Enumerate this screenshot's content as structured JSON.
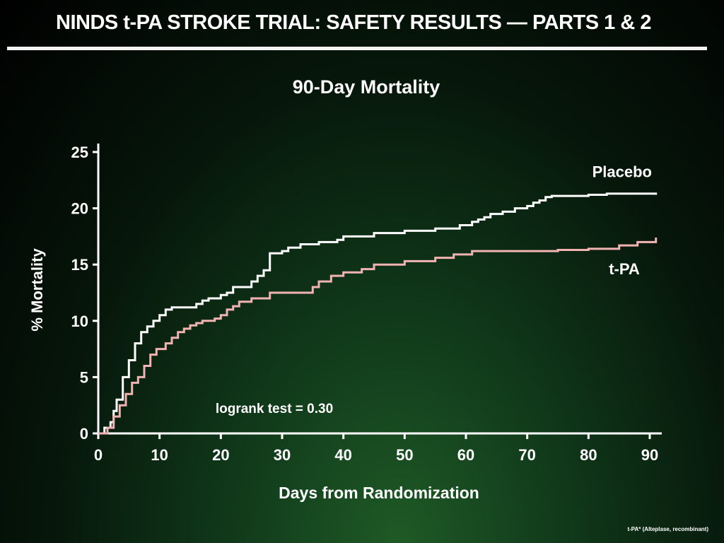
{
  "slide": {
    "title": "NINDS t-PA STROKE TRIAL: SAFETY RESULTS — PARTS 1 & 2",
    "footnote": "t-PA* (Alteplase, recombinant)"
  },
  "chart_data": {
    "type": "line",
    "title": "90-Day Mortality",
    "xlabel": "Days from Randomization",
    "ylabel": "% Mortality",
    "xlim": [
      0,
      90
    ],
    "ylim": [
      0,
      25
    ],
    "xticks": [
      0,
      10,
      20,
      30,
      40,
      50,
      60,
      70,
      80,
      90
    ],
    "yticks": [
      0,
      5,
      10,
      15,
      20,
      25
    ],
    "grid": false,
    "annotation": "logrank test = 0.30",
    "series": [
      {
        "name": "Placebo",
        "color": "#ffffff",
        "step": true,
        "x": [
          0,
          1,
          2,
          2.5,
          3,
          4,
          5,
          6,
          7,
          8,
          9,
          10,
          11,
          12,
          16,
          17,
          18,
          20,
          21,
          22,
          25,
          26,
          27,
          28,
          30,
          31,
          33,
          36,
          39,
          40,
          45,
          50,
          55,
          59,
          61,
          62,
          63,
          64,
          66,
          68,
          70,
          71,
          72,
          73,
          74,
          80,
          83,
          84,
          91
        ],
        "y": [
          0,
          0.5,
          1,
          2,
          3,
          5,
          6.5,
          8,
          9,
          9.5,
          10,
          10.5,
          11,
          11.2,
          11.5,
          11.8,
          12,
          12.3,
          12.5,
          13,
          13.5,
          14,
          14.5,
          16,
          16.2,
          16.5,
          16.8,
          17,
          17.2,
          17.5,
          17.8,
          18,
          18.2,
          18.5,
          18.8,
          19,
          19.2,
          19.5,
          19.7,
          20,
          20.2,
          20.5,
          20.7,
          21,
          21.1,
          21.2,
          21.3,
          21.3,
          21.2
        ],
        "label_position": "top-right"
      },
      {
        "name": "t-PA",
        "color": "#f2b3b3",
        "step": true,
        "x": [
          0,
          1.5,
          2.5,
          3.5,
          4.5,
          5.5,
          6.5,
          7.5,
          8.5,
          9.5,
          11,
          12,
          13,
          14,
          15,
          16,
          17,
          19,
          20,
          21,
          22,
          23,
          25,
          28,
          35,
          36,
          38,
          40,
          43,
          45,
          50,
          55,
          58,
          61,
          75,
          80,
          85,
          88,
          91
        ],
        "y": [
          0,
          0.5,
          1.5,
          2.5,
          3.5,
          4.5,
          5,
          6,
          7,
          7.5,
          8,
          8.5,
          9,
          9.3,
          9.6,
          9.8,
          10,
          10.2,
          10.5,
          11,
          11.3,
          11.7,
          12,
          12.5,
          13,
          13.5,
          14,
          14.3,
          14.6,
          15,
          15.3,
          15.6,
          15.9,
          16.2,
          16.3,
          16.4,
          16.7,
          17,
          17.4
        ],
        "label_position": "right"
      }
    ]
  }
}
